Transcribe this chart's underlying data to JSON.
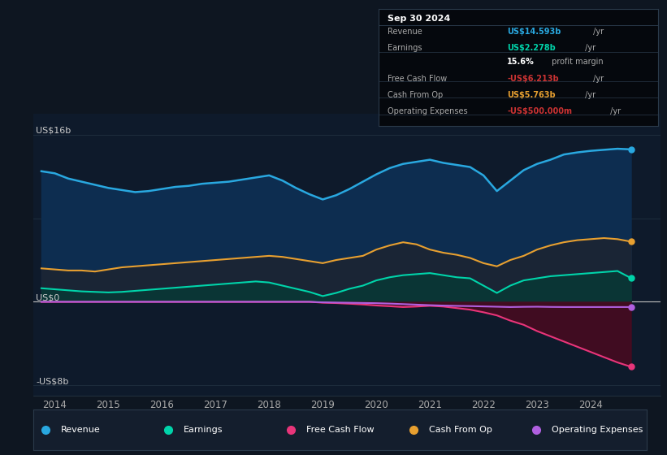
{
  "bg_color": "#0e1621",
  "plot_bg_color": "#0e1a2b",
  "ylim": [
    -9,
    18
  ],
  "xlim": [
    2013.6,
    2025.3
  ],
  "xticks": [
    2014,
    2015,
    2016,
    2017,
    2018,
    2019,
    2020,
    2021,
    2022,
    2023,
    2024
  ],
  "grid_color": "#1e2d3d",
  "revenue_color": "#29a8e0",
  "earnings_color": "#00d4aa",
  "fcf_color": "#e8357a",
  "cashfromop_color": "#e8a030",
  "opex_color": "#b060e0",
  "revenue_fill": "#0d2d50",
  "cashfromop_fill": "#1a2535",
  "earnings_fill": "#0a3535",
  "fcf_fill_neg": "#4a0a20",
  "legend_items": [
    {
      "label": "Revenue",
      "color": "#29a8e0"
    },
    {
      "label": "Earnings",
      "color": "#00d4aa"
    },
    {
      "label": "Free Cash Flow",
      "color": "#e8357a"
    },
    {
      "label": "Cash From Op",
      "color": "#e8a030"
    },
    {
      "label": "Operating Expenses",
      "color": "#b060e0"
    }
  ],
  "years": [
    2013.75,
    2014.0,
    2014.25,
    2014.5,
    2014.75,
    2015.0,
    2015.25,
    2015.5,
    2015.75,
    2016.0,
    2016.25,
    2016.5,
    2016.75,
    2017.0,
    2017.25,
    2017.5,
    2017.75,
    2018.0,
    2018.25,
    2018.5,
    2018.75,
    2019.0,
    2019.25,
    2019.5,
    2019.75,
    2020.0,
    2020.25,
    2020.5,
    2020.75,
    2021.0,
    2021.25,
    2021.5,
    2021.75,
    2022.0,
    2022.25,
    2022.5,
    2022.75,
    2023.0,
    2023.25,
    2023.5,
    2023.75,
    2024.0,
    2024.25,
    2024.5,
    2024.75
  ],
  "revenue": [
    12.5,
    12.3,
    11.8,
    11.5,
    11.2,
    10.9,
    10.7,
    10.5,
    10.6,
    10.8,
    11.0,
    11.1,
    11.3,
    11.4,
    11.5,
    11.7,
    11.9,
    12.1,
    11.6,
    10.9,
    10.3,
    9.8,
    10.2,
    10.8,
    11.5,
    12.2,
    12.8,
    13.2,
    13.4,
    13.6,
    13.3,
    13.1,
    12.9,
    12.1,
    10.6,
    11.6,
    12.6,
    13.2,
    13.6,
    14.1,
    14.3,
    14.45,
    14.55,
    14.65,
    14.593
  ],
  "earnings": [
    1.3,
    1.2,
    1.1,
    1.0,
    0.95,
    0.9,
    0.95,
    1.05,
    1.15,
    1.25,
    1.35,
    1.45,
    1.55,
    1.65,
    1.75,
    1.85,
    1.95,
    1.85,
    1.55,
    1.25,
    0.95,
    0.55,
    0.85,
    1.25,
    1.55,
    2.05,
    2.35,
    2.55,
    2.65,
    2.75,
    2.55,
    2.35,
    2.25,
    1.55,
    0.85,
    1.55,
    2.05,
    2.25,
    2.45,
    2.55,
    2.65,
    2.75,
    2.85,
    2.95,
    2.278
  ],
  "cashfromop": [
    3.2,
    3.1,
    3.0,
    3.0,
    2.9,
    3.1,
    3.3,
    3.4,
    3.5,
    3.6,
    3.7,
    3.8,
    3.9,
    4.0,
    4.1,
    4.2,
    4.3,
    4.4,
    4.3,
    4.1,
    3.9,
    3.7,
    4.0,
    4.2,
    4.4,
    5.0,
    5.4,
    5.7,
    5.5,
    5.0,
    4.7,
    4.5,
    4.2,
    3.7,
    3.4,
    4.0,
    4.4,
    5.0,
    5.4,
    5.7,
    5.9,
    6.0,
    6.1,
    6.0,
    5.763
  ],
  "free_cash_flow": [
    0.0,
    0.0,
    0.0,
    0.0,
    0.0,
    0.0,
    0.0,
    0.0,
    0.0,
    0.0,
    0.0,
    0.0,
    0.0,
    0.0,
    0.0,
    0.0,
    0.0,
    0.0,
    0.0,
    0.0,
    0.0,
    -0.08,
    -0.12,
    -0.18,
    -0.25,
    -0.35,
    -0.42,
    -0.5,
    -0.45,
    -0.38,
    -0.45,
    -0.6,
    -0.75,
    -1.0,
    -1.3,
    -1.8,
    -2.2,
    -2.8,
    -3.3,
    -3.8,
    -4.3,
    -4.8,
    -5.3,
    -5.8,
    -6.213
  ],
  "opex": [
    0.0,
    0.0,
    0.0,
    0.0,
    0.0,
    0.0,
    0.0,
    0.0,
    0.0,
    0.0,
    0.0,
    0.0,
    0.0,
    0.0,
    0.0,
    0.0,
    0.0,
    0.0,
    0.0,
    0.0,
    0.0,
    -0.05,
    -0.07,
    -0.09,
    -0.11,
    -0.13,
    -0.17,
    -0.22,
    -0.27,
    -0.32,
    -0.36,
    -0.39,
    -0.41,
    -0.44,
    -0.47,
    -0.5,
    -0.48,
    -0.47,
    -0.49,
    -0.5,
    -0.5,
    -0.5,
    -0.5,
    -0.5,
    -0.5
  ],
  "info_box": {
    "title": "Sep 30 2024",
    "rows": [
      {
        "label": "Revenue",
        "value": "US$14.593b",
        "suffix": " /yr",
        "value_color": "#29a8e0"
      },
      {
        "label": "Earnings",
        "value": "US$2.278b",
        "suffix": " /yr",
        "value_color": "#00d4aa"
      },
      {
        "label": "",
        "value": "15.6%",
        "suffix": " profit margin",
        "value_color": "#ffffff"
      },
      {
        "label": "Free Cash Flow",
        "value": "-US$6.213b",
        "suffix": " /yr",
        "value_color": "#cc3333"
      },
      {
        "label": "Cash From Op",
        "value": "US$5.763b",
        "suffix": " /yr",
        "value_color": "#e8a030"
      },
      {
        "label": "Operating Expenses",
        "value": "-US$500.000m",
        "suffix": " /yr",
        "value_color": "#cc3333"
      }
    ]
  }
}
